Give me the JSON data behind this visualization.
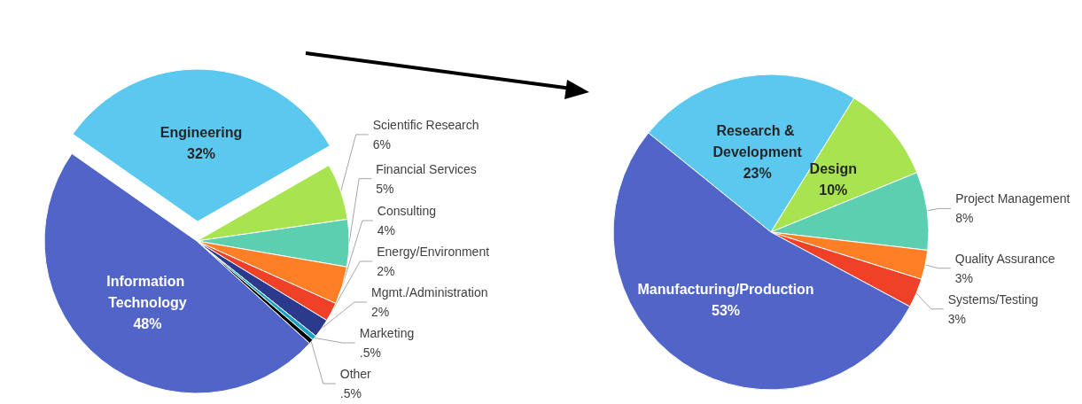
{
  "chart_data": [
    {
      "type": "pie",
      "categories": [
        "Engineering",
        "Scientific Research",
        "Financial Services",
        "Consulting",
        "Energy/Environment",
        "Mgmt./Administration",
        "Marketing",
        "Other",
        "Information Technology"
      ],
      "values": [
        32,
        6,
        5,
        4,
        2,
        2,
        0.5,
        0.5,
        48
      ],
      "value_labels": [
        "32%",
        "6%",
        "5%",
        "4%",
        "2%",
        "2%",
        ".5%",
        ".5%",
        "48%"
      ],
      "colors": [
        "#5bc8f0",
        "#a8e44f",
        "#5ccfb0",
        "#ff7f27",
        "#ef4028",
        "#2b3a8c",
        "#1ba1c4",
        "#000000",
        "#5165c8"
      ],
      "legend": false
    },
    {
      "type": "pie",
      "categories": [
        "Research & Development",
        "Design",
        "Project Management",
        "Quality Assurance",
        "Systems/Testing",
        "Manufacturing/Production"
      ],
      "values": [
        23,
        10,
        8,
        3,
        3,
        53
      ],
      "value_labels": [
        "23%",
        "10%",
        "8%",
        "3%",
        "3%",
        "53%"
      ],
      "colors": [
        "#5bc8f0",
        "#a8e44f",
        "#5ccfb0",
        "#ff7f27",
        "#ef4028",
        "#5165c8"
      ],
      "legend": false
    }
  ]
}
